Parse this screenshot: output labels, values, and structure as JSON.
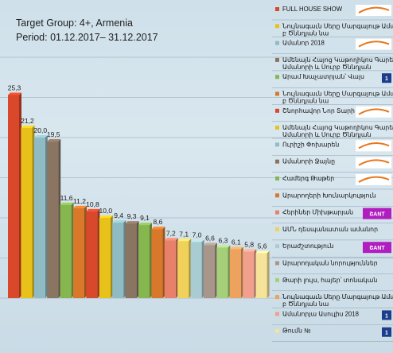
{
  "header": {
    "title": "Target Group: 4+, Armenia",
    "period": "Period: 01.12.2017– 31.12.2017"
  },
  "chart_data": {
    "type": "bar",
    "title": "Target Group: 4+, Armenia",
    "subtitle": "Period: 01.12.2017– 31.12.2017",
    "xlabel": "",
    "ylabel": "",
    "ylim": [
      0,
      30
    ],
    "grid": true,
    "legend_position": "right",
    "categories": [
      "FULL HOUSE SHOW",
      "Նույնագաւն Սերը Մարգայութ Ամանորի և Սուրբ Ծննդյան նա",
      "Ամանոր 2018",
      "Ամենայն Հայոց Կաթողիկոս Գարեգին ուղերձը Ամանորի և Սուրբ Ծննդյան",
      "Արամ Խաչատրյան՝ Վալս",
      "Նույնագաւն Սերը Մարգայութ Ամանորի և Սուրբ Ծննդյան նա",
      "Շնորհավոր Նոր Տարի",
      "Ամենայն Հայոց Կաթողիկոս Գարեգին ուղերձը Ամանորի և Սուրբ Ծննդյան",
      "Ուրիշի Փոխարեն",
      "Ամանորի Ջայնը",
      "Համերգ Թաթեր",
      "Արարողերի Խունարկություն",
      "Հերիներ Միխթարյան",
      "ԱՄՆ դեսպանատան ամանոր",
      "Երաժշտություն",
      "Արարողական նորություններ",
      "Թարի լույս, հայեր՝ տոնական",
      "Նույնագաւն Սերը Մարգայութ Ամանորի և Սուրբ Ծննդյան նա",
      "Ամանորյա Ասուլիս 2018",
      "Թումն №"
    ],
    "values": [
      25.3,
      21.2,
      20.0,
      19.5,
      11.6,
      11.2,
      10.8,
      10.0,
      9.4,
      9.3,
      9.1,
      8.6,
      7.2,
      7.1,
      7.0,
      6.6,
      6.3,
      6.1,
      5.8,
      5.6
    ],
    "value_labels": [
      "25,3",
      "21,2",
      "20,0",
      "19,5",
      "11,6",
      "11,2",
      "10,8",
      "10,0",
      "9,4",
      "9,3",
      "9,1",
      "8,6",
      "7,2",
      "7,1",
      "7,0",
      "6,6",
      "6,3",
      "6,1",
      "5,8",
      "5,6"
    ],
    "colors": [
      "#d9482b",
      "#e8c21a",
      "#8fbcc4",
      "#8a7462",
      "#86b74f",
      "#d9782b",
      "#d9482b",
      "#e8c21a",
      "#8fbcc4",
      "#8a7462",
      "#86b74f",
      "#d9782b",
      "#e8806a",
      "#f0d15a",
      "#a9ccd2",
      "#a8968a",
      "#a6cf7a",
      "#eda25e",
      "#f0a08c",
      "#f5e39a"
    ],
    "logos": [
      "orange-swoosh",
      "",
      "orange-swoosh",
      "",
      "box-1",
      "",
      "orange-swoosh",
      "",
      "orange-swoosh",
      "orange-swoosh",
      "orange-swoosh",
      "",
      "shant",
      "",
      "shant",
      "",
      "",
      "",
      "box-1",
      "box-1"
    ],
    "logo_shant_text": "ՇANT",
    "logo_box_text": "1"
  }
}
